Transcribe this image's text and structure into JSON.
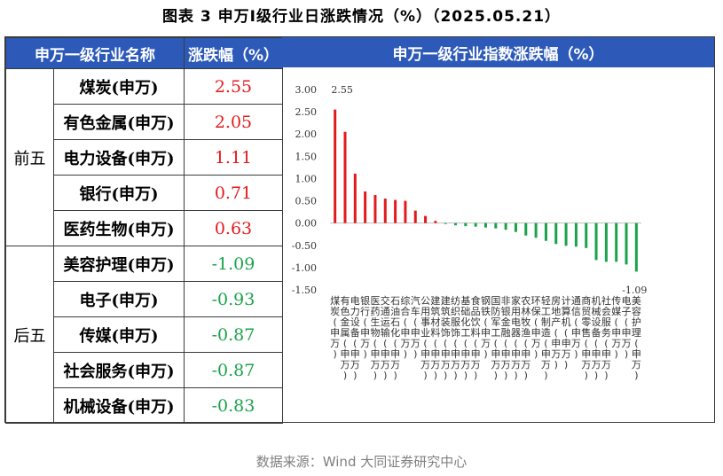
{
  "title": "图表 3   申万Ⅰ级行业日涨跌情况（%）（2025.05.21）",
  "table": {
    "header_name": "申万一级行业名称",
    "header_change": "涨跌幅（%）",
    "group_top": "前五",
    "group_bottom": "后五",
    "top5": [
      {
        "name": "煤炭(申万)",
        "value": "2.55"
      },
      {
        "name": "有色金属(申万)",
        "value": "2.05"
      },
      {
        "name": "电力设备(申万)",
        "value": "1.11"
      },
      {
        "name": "银行(申万)",
        "value": "0.71"
      },
      {
        "name": "医药生物(申万)",
        "value": "0.63"
      }
    ],
    "bottom5": [
      {
        "name": "美容护理(申万)",
        "value": "-1.09"
      },
      {
        "name": "电子(申万)",
        "value": "-0.93"
      },
      {
        "name": "传媒(申万)",
        "value": "-0.87"
      },
      {
        "name": "社会服务(申万)",
        "value": "-0.87"
      },
      {
        "name": "机械设备(申万)",
        "value": "-0.83"
      }
    ]
  },
  "chart_title": "申万一级行业指数涨跌幅（%）",
  "chart_data": {
    "type": "bar",
    "ylim": [
      -1.5,
      3.0
    ],
    "yticks": [
      "3.00",
      "2.50",
      "2.00",
      "1.50",
      "1.00",
      "0.50",
      "0.00",
      "-0.50",
      "-1.00",
      "-1.50"
    ],
    "categories": [
      "煤炭(申万)",
      "有色金属(申万)",
      "电力设备(申万)",
      "银行(申万)",
      "医药生物(申万)",
      "交通运输(申万)",
      "石油石化(申万)",
      "综合(申万)",
      "汽车(申万)",
      "公用事业(申万)",
      "建筑材料(申万)",
      "建筑装饰(申万)",
      "纺织服饰(申万)",
      "基础化工(申万)",
      "食品饮料(申万)",
      "钢铁(申万)",
      "国防军工(申万)",
      "非银金融(申万)",
      "家用电器(申万)",
      "农林牧渔(申万)",
      "环保(申万)",
      "轻工制造(申万)",
      "房地产(申万)",
      "计算机(申万)",
      "通信(申万)",
      "商贸零售(申万)",
      "机械设备(申万)",
      "社会服务(申万)",
      "传媒(申万)",
      "电子(申万)",
      "美容护理(申万)"
    ],
    "values": [
      2.55,
      2.05,
      1.11,
      0.71,
      0.63,
      0.55,
      0.52,
      0.5,
      0.28,
      0.16,
      0.05,
      -0.02,
      -0.05,
      -0.07,
      -0.08,
      -0.1,
      -0.12,
      -0.15,
      -0.2,
      -0.28,
      -0.33,
      -0.4,
      -0.47,
      -0.51,
      -0.53,
      -0.56,
      -0.83,
      -0.87,
      -0.87,
      -0.93,
      -1.09
    ],
    "data_labels": {
      "max": "2.55",
      "min": "-1.09"
    },
    "colors": {
      "positive": "#e31a1c",
      "negative": "#1aa34a"
    }
  },
  "source": "数据来源：Wind 大同证券研究中心"
}
